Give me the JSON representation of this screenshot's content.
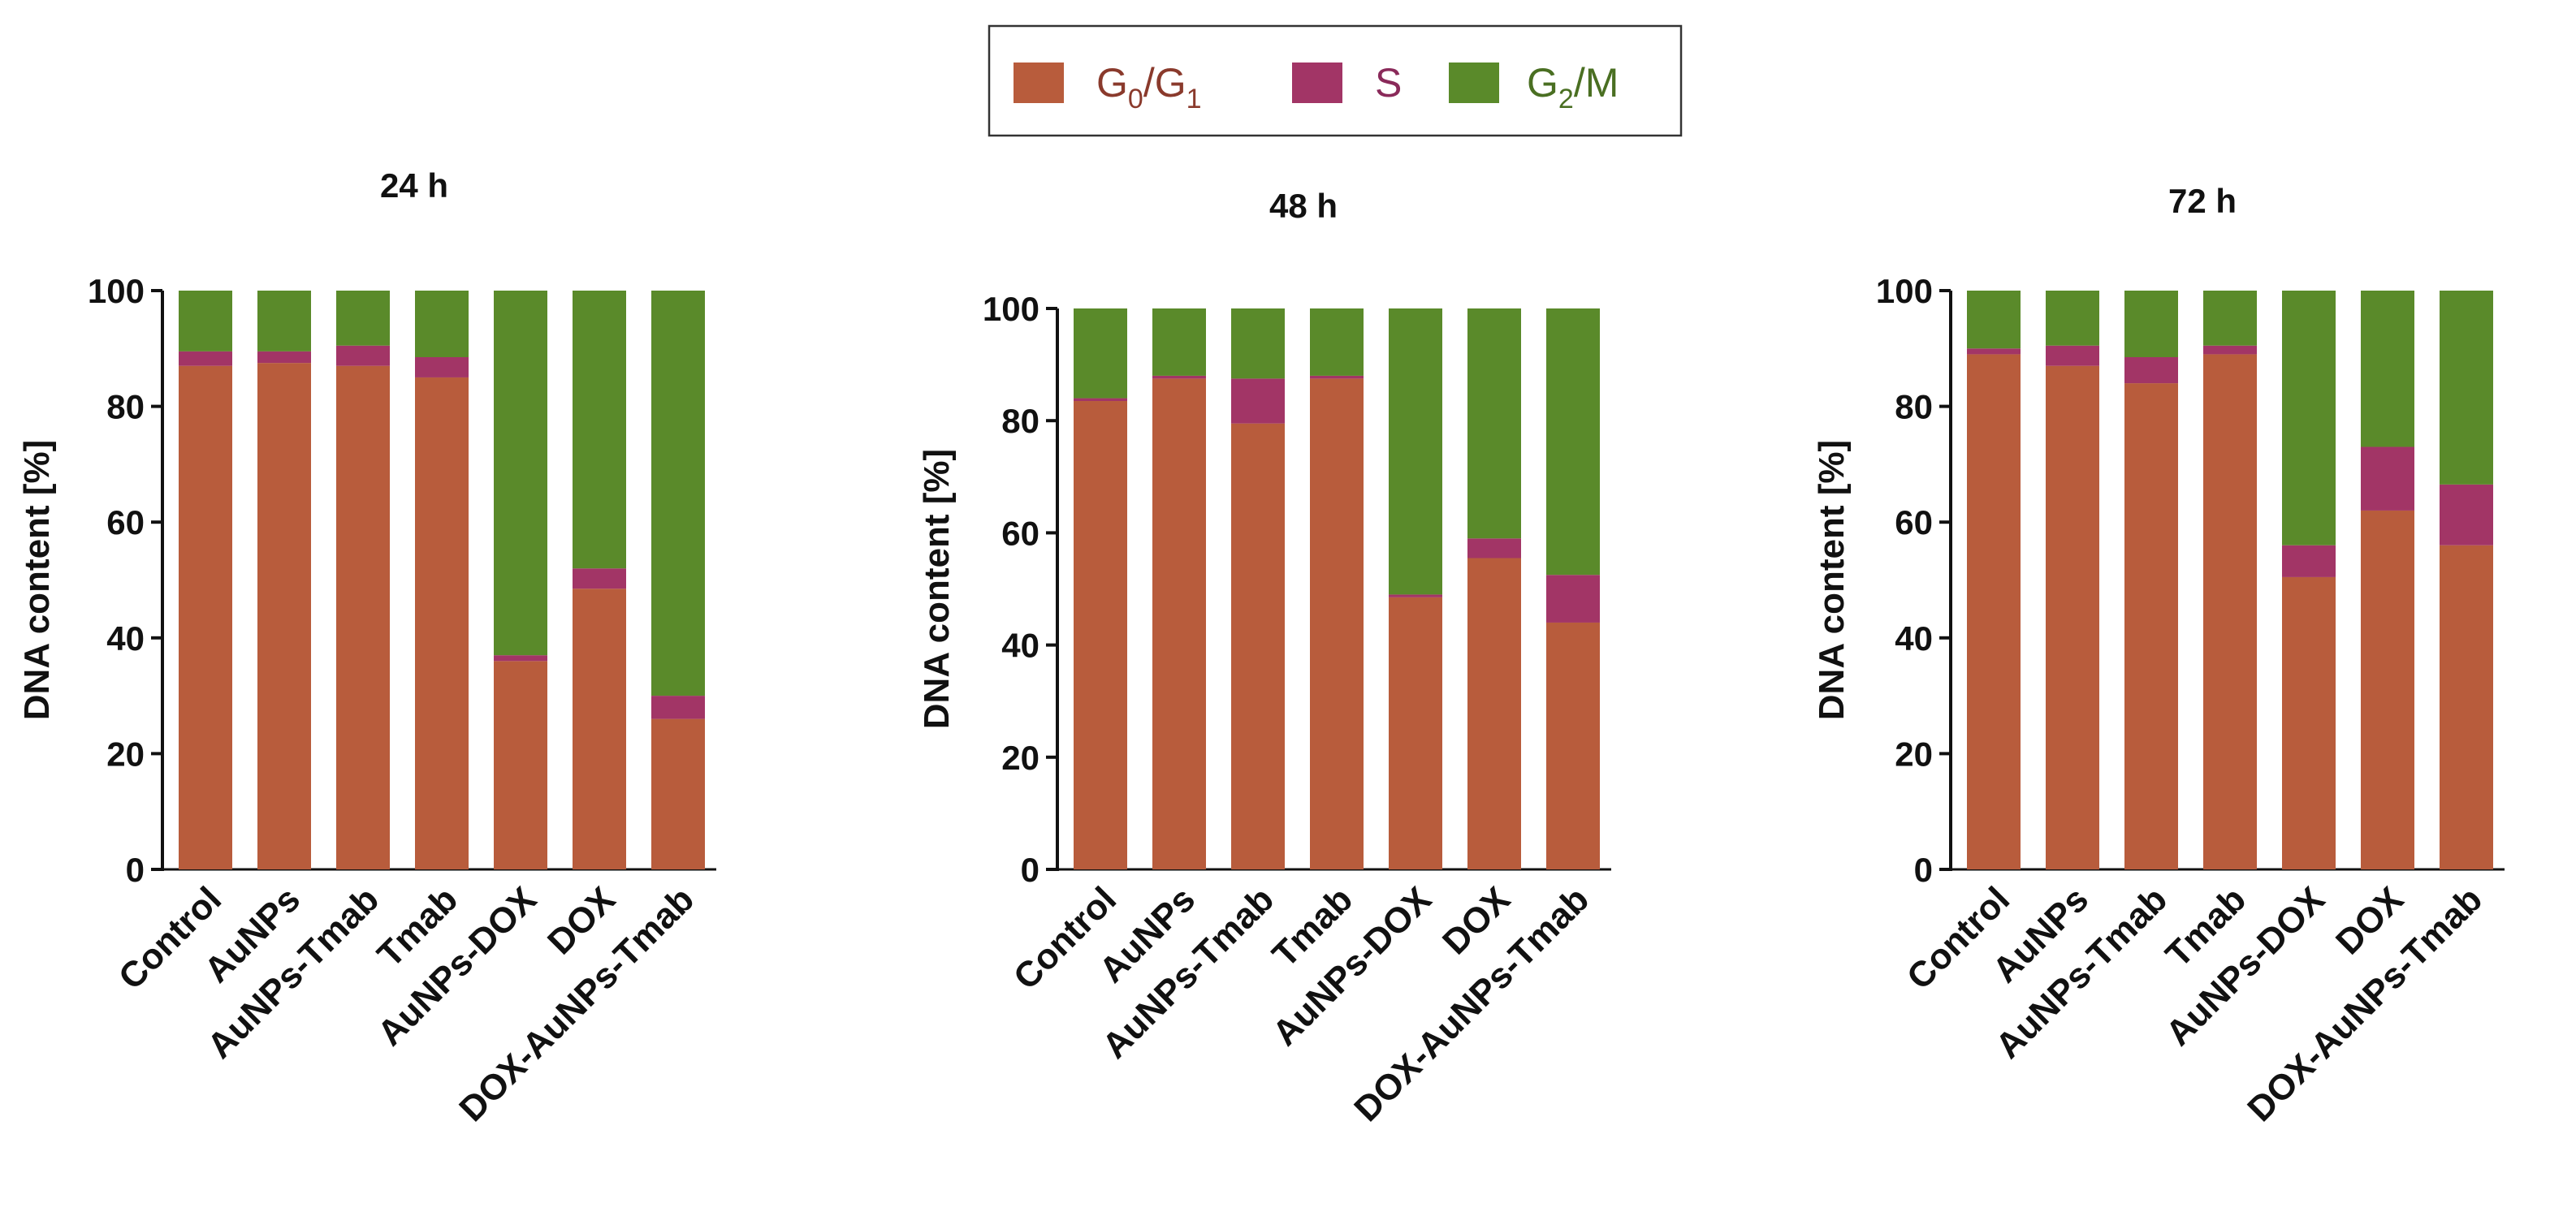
{
  "chart_data": [
    {
      "type": "bar",
      "stacked": true,
      "title": "24 h",
      "ylabel": "DNA content [%]",
      "xlabel": "",
      "ylim": [
        0,
        100
      ],
      "yticks": [
        0,
        20,
        40,
        60,
        80,
        100
      ],
      "categories": [
        "Control",
        "AuNPs",
        "AuNPs-Tmab",
        "Tmab",
        "AuNPs-DOX",
        "DOX",
        "DOX-AuNPs-Tmab"
      ],
      "series": [
        {
          "name": "G0/G1",
          "values": [
            87,
            87.5,
            87,
            85,
            36,
            48.5,
            26
          ]
        },
        {
          "name": "S",
          "values": [
            2.5,
            2,
            3.5,
            3.5,
            1,
            3.5,
            4
          ]
        },
        {
          "name": "G2/M",
          "values": [
            10.5,
            10.5,
            9.5,
            11.5,
            63,
            48,
            70
          ]
        }
      ]
    },
    {
      "type": "bar",
      "stacked": true,
      "title": "48 h",
      "ylabel": "DNA content [%]",
      "xlabel": "",
      "ylim": [
        0,
        100
      ],
      "yticks": [
        0,
        20,
        40,
        60,
        80,
        100
      ],
      "categories": [
        "Control",
        "AuNPs",
        "AuNPs-Tmab",
        "Tmab",
        "AuNPs-DOX",
        "DOX",
        "DOX-AuNPs-Tmab"
      ],
      "series": [
        {
          "name": "G0/G1",
          "values": [
            83.5,
            87.5,
            79.5,
            87.5,
            48.5,
            55.5,
            44
          ]
        },
        {
          "name": "S",
          "values": [
            0.5,
            0.5,
            8,
            0.5,
            0.5,
            3.5,
            8.5
          ]
        },
        {
          "name": "G2/M",
          "values": [
            16,
            12,
            12.5,
            12,
            51,
            41,
            47.5
          ]
        }
      ]
    },
    {
      "type": "bar",
      "stacked": true,
      "title": "72 h",
      "ylabel": "DNA content [%]",
      "xlabel": "",
      "ylim": [
        0,
        100
      ],
      "yticks": [
        0,
        20,
        40,
        60,
        80,
        100
      ],
      "categories": [
        "Control",
        "AuNPs",
        "AuNPs-Tmab",
        "Tmab",
        "AuNPs-DOX",
        "DOX",
        "DOX-AuNPs-Tmab"
      ],
      "series": [
        {
          "name": "G0/G1",
          "values": [
            89,
            87,
            84,
            89,
            50.5,
            62,
            56
          ]
        },
        {
          "name": "S",
          "values": [
            1,
            3.5,
            4.5,
            1.5,
            5.5,
            11,
            10.5
          ]
        },
        {
          "name": "G2/M",
          "values": [
            10,
            9.5,
            11.5,
            9.5,
            44,
            27,
            33.5
          ]
        }
      ]
    }
  ],
  "legend": {
    "position": "top-center",
    "items": [
      {
        "name": "G0/G1",
        "base": "G",
        "sub1": "0",
        "mid": "/G",
        "sub2": "1",
        "color": "#b85c3c",
        "text_color": "#8a3a2c"
      },
      {
        "name": "S",
        "base": "S",
        "sub1": "",
        "mid": "",
        "sub2": "",
        "color": "#a23566",
        "text_color": "#8a2a5a"
      },
      {
        "name": "G2/M",
        "base": "G",
        "sub1": "2",
        "mid": "/M",
        "sub2": "",
        "color": "#5a8a2a",
        "text_color": "#4a6f22"
      }
    ]
  },
  "colors": {
    "g0g1": "#b85c3c",
    "s": "#a23566",
    "g2m": "#5a8a2a",
    "axis": "#111111"
  }
}
